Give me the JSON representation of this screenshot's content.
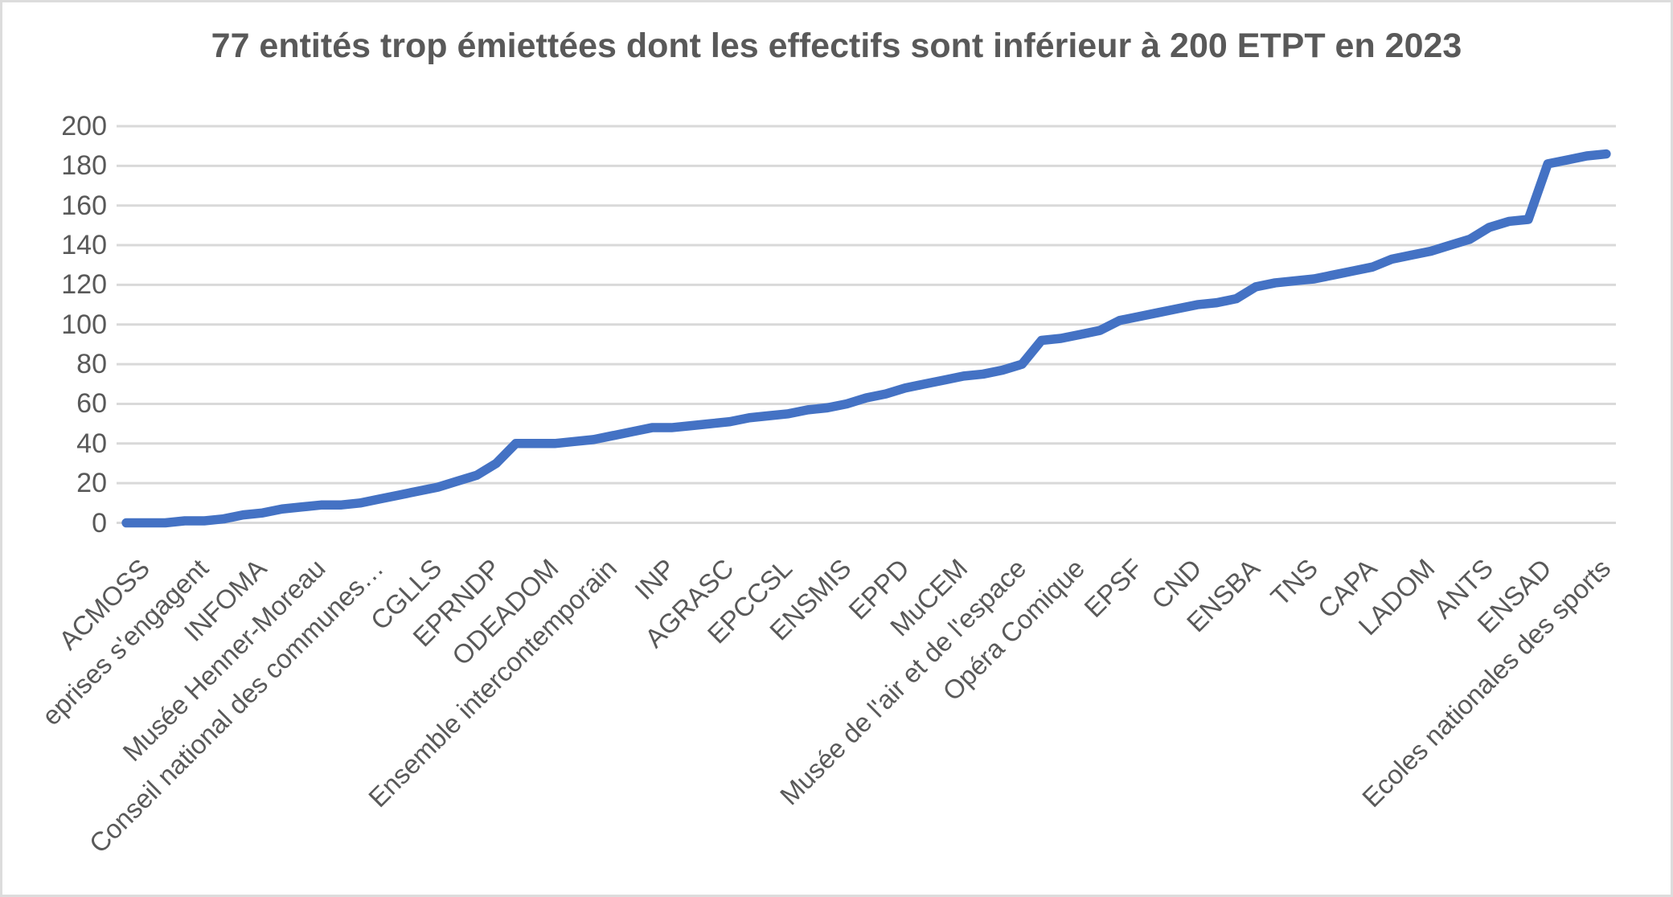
{
  "chart_data": {
    "type": "line",
    "title": "77 entités trop émiettées dont les effectifs sont inférieur à 200 ETPT en 2023",
    "n_points": 77,
    "ylim": [
      0,
      200
    ],
    "y_ticks": [
      0,
      20,
      40,
      60,
      80,
      100,
      120,
      140,
      160,
      180,
      200
    ],
    "grid": "horizontal-only",
    "legend_position": "none",
    "label_step": 3,
    "x_tick_labels": [
      "ACMOSS",
      "eprises s'engagent",
      "INFOMA",
      "Musée Henner-Moreau",
      "Conseil national des communes…",
      "CGLLS",
      "EPRNDP",
      "ODEADOM",
      "Ensemble intercontemporain",
      "INP",
      "AGRASC",
      "EPCCSL",
      "ENSMIS",
      "EPPD",
      "MuCEM",
      "Musée de l'air et de l'espace",
      "Opéra Comique",
      "EPSF",
      "CND",
      "ENSBA",
      "TNS",
      "CAPA",
      "LADOM",
      "ANTS",
      "ENSAD",
      "Ecoles nationales des sports"
    ],
    "values": [
      0,
      0,
      0,
      1,
      1,
      2,
      4,
      5,
      7,
      8,
      9,
      9,
      10,
      12,
      14,
      16,
      18,
      21,
      24,
      30,
      40,
      40,
      40,
      41,
      42,
      44,
      46,
      48,
      48,
      49,
      50,
      51,
      53,
      54,
      55,
      57,
      58,
      60,
      63,
      65,
      68,
      70,
      72,
      74,
      75,
      77,
      80,
      92,
      93,
      95,
      97,
      102,
      104,
      106,
      108,
      110,
      111,
      113,
      119,
      121,
      122,
      123,
      125,
      127,
      129,
      133,
      135,
      137,
      140,
      143,
      149,
      152,
      153,
      181,
      183,
      185,
      186
    ],
    "colors": {
      "line": "#4472C4",
      "text": "#595959",
      "gridline": "#D9D9D9",
      "background": "#FFFFFF",
      "frame_border": "#DCDCDC"
    }
  }
}
